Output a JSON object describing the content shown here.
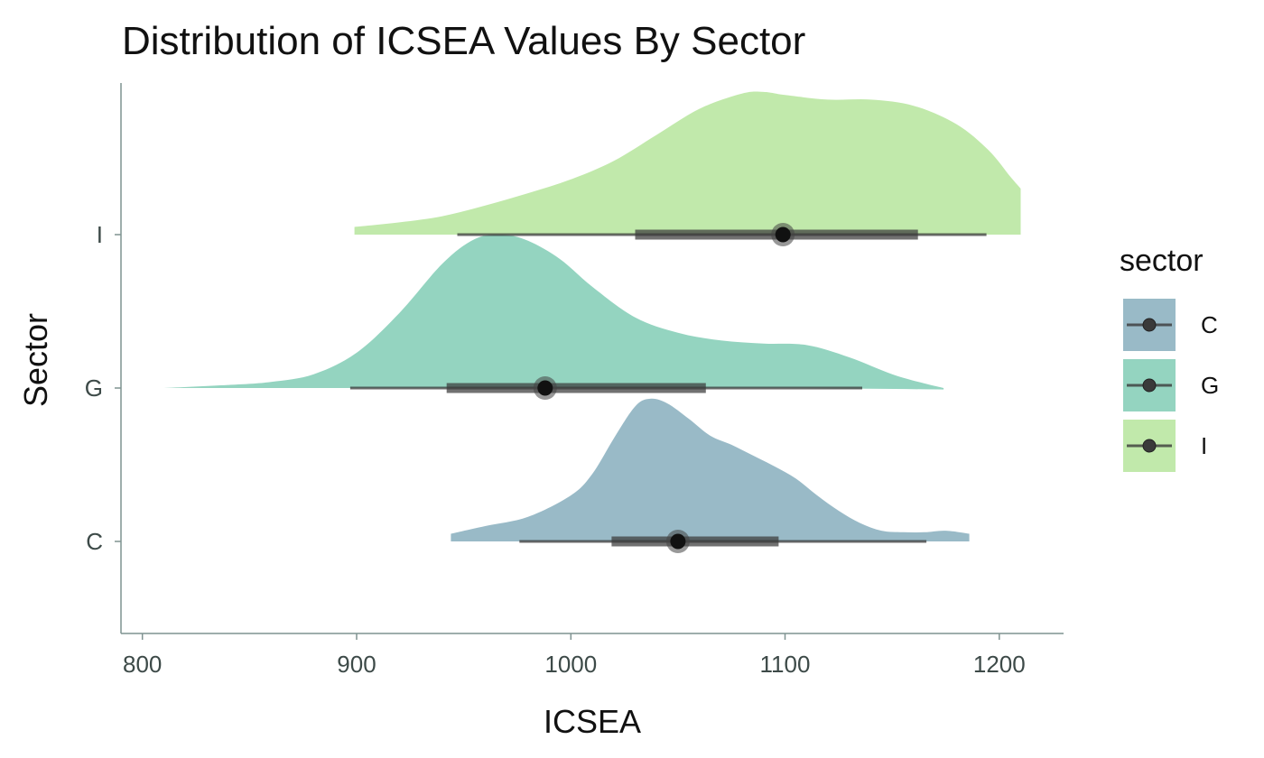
{
  "chart_data": {
    "type": "density_ridge_with_pointinterval",
    "title": "Distribution of ICSEA Values By Sector",
    "xlabel": "ICSEA",
    "ylabel": "Sector",
    "xlim": [
      790,
      1230
    ],
    "x_ticks": [
      800,
      900,
      1000,
      1100,
      1200
    ],
    "y_categories": [
      "C",
      "G",
      "I"
    ],
    "legend": {
      "title": "sector",
      "position": "right",
      "items": [
        "C",
        "G",
        "I"
      ]
    },
    "colors": {
      "C": "#99bac7",
      "G": "#94d4c0",
      "I": "#c1e9ab",
      "interval": "#3a3a3a",
      "point": "#111111"
    },
    "series": [
      {
        "name": "C",
        "density": {
          "x": [
            944,
            960,
            980,
            1000,
            1010,
            1020,
            1030,
            1037,
            1045,
            1055,
            1065,
            1075,
            1085,
            1095,
            1105,
            1115,
            1125,
            1135,
            1145,
            1155,
            1165,
            1175,
            1186
          ],
          "y": [
            0.05,
            0.1,
            0.16,
            0.3,
            0.44,
            0.67,
            0.88,
            0.93,
            0.9,
            0.8,
            0.69,
            0.63,
            0.56,
            0.49,
            0.41,
            0.3,
            0.2,
            0.12,
            0.07,
            0.06,
            0.06,
            0.07,
            0.05
          ]
        },
        "point": 1050,
        "interval_66": [
          1019,
          1097
        ],
        "interval_95": [
          976,
          1166
        ]
      },
      {
        "name": "G",
        "density": {
          "x": [
            810,
            840,
            860,
            880,
            900,
            920,
            940,
            955,
            968,
            980,
            995,
            1010,
            1030,
            1050,
            1070,
            1090,
            1110,
            1130,
            1150,
            1165,
            1174
          ],
          "y": [
            0.0,
            0.02,
            0.04,
            0.09,
            0.23,
            0.49,
            0.81,
            0.97,
            1.0,
            0.96,
            0.84,
            0.66,
            0.46,
            0.36,
            0.31,
            0.29,
            0.28,
            0.2,
            0.09,
            0.03,
            0.0
          ],
          "tail_end_height": 0.04
        },
        "point": 988,
        "interval_66": [
          942,
          1063
        ],
        "interval_95": [
          897,
          1136
        ]
      },
      {
        "name": "I",
        "density": {
          "x": [
            899,
            920,
            940,
            960,
            980,
            1000,
            1020,
            1040,
            1060,
            1080,
            1090,
            1100,
            1120,
            1140,
            1160,
            1180,
            1195,
            1205,
            1210
          ],
          "y": [
            0.05,
            0.08,
            0.12,
            0.19,
            0.27,
            0.36,
            0.48,
            0.65,
            0.82,
            0.92,
            0.93,
            0.91,
            0.88,
            0.88,
            0.84,
            0.72,
            0.55,
            0.38,
            0.3
          ]
        },
        "point": 1099,
        "interval_66": [
          1030,
          1162
        ],
        "interval_95": [
          947,
          1194
        ]
      }
    ]
  }
}
